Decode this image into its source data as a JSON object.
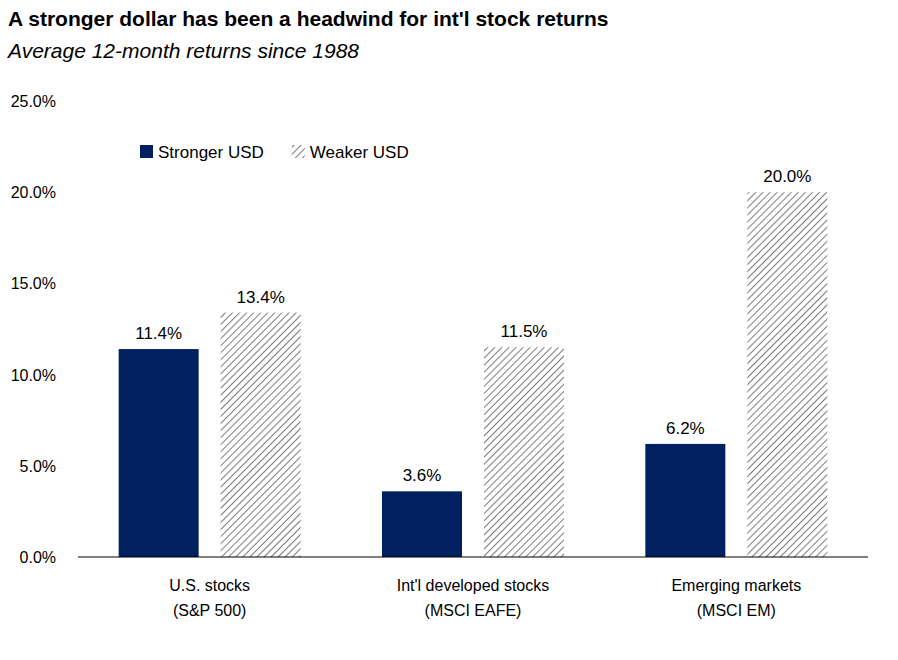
{
  "chart_data": {
    "type": "bar",
    "title": "A stronger dollar has been a headwind for int'l stock returns",
    "subtitle": "Average 12-month returns since 1988",
    "categories": [
      "U.S. stocks\n(S&P 500)",
      "Int'l developed stocks\n(MSCI EAFE)",
      "Emerging markets\n(MSCI EM)"
    ],
    "series": [
      {
        "name": "Stronger USD",
        "color": "#002060",
        "values": [
          11.4,
          3.6,
          6.2
        ],
        "value_labels": [
          "11.4%",
          "3.6%",
          "6.2%"
        ]
      },
      {
        "name": "Weaker USD",
        "color": "#595959",
        "values": [
          13.4,
          11.5,
          20.0
        ],
        "value_labels": [
          "13.4%",
          "11.5%",
          "20.0%"
        ]
      }
    ],
    "ylim": [
      0,
      25
    ],
    "yticks": [
      {
        "value": 0,
        "label": "0.0%"
      },
      {
        "value": 5,
        "label": "5.0%"
      },
      {
        "value": 10,
        "label": "10.0%"
      },
      {
        "value": 15,
        "label": "15.0%"
      },
      {
        "value": 20,
        "label": "20.0%"
      },
      {
        "value": 25,
        "label": "25.0%"
      }
    ],
    "grid": false,
    "legend": "top-left",
    "data_labels": true
  }
}
